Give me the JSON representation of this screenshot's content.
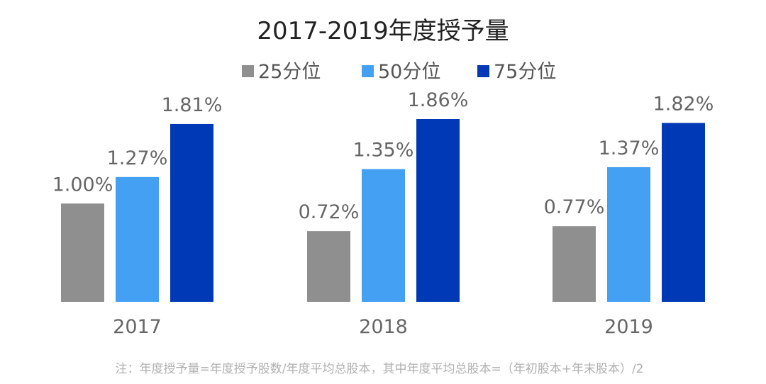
{
  "chart_data": {
    "type": "bar",
    "title": "2017-2019年度授予量",
    "categories": [
      "2017",
      "2018",
      "2019"
    ],
    "series": [
      {
        "name": "25分位",
        "values": [
          1.0,
          0.72,
          0.77
        ],
        "labels": [
          "1.00%",
          "0.72%",
          "0.77%"
        ],
        "color": "#8f8f8f"
      },
      {
        "name": "50分位",
        "values": [
          1.27,
          1.35,
          1.37
        ],
        "labels": [
          "1.27%",
          "1.35%",
          "1.37%"
        ],
        "color": "#44a0f2"
      },
      {
        "name": "75分位",
        "values": [
          1.81,
          1.86,
          1.82
        ],
        "labels": [
          "1.81%",
          "1.86%",
          "1.82%"
        ],
        "color": "#0039b5"
      }
    ],
    "unit": "%",
    "ylim": [
      0,
      1.86
    ],
    "legend_position": "top",
    "grid": false,
    "footnote": "注：年度授予量=年度授予股数/年度平均总股本，其中年度平均总股本=（年初股本+年末股本）/2"
  }
}
